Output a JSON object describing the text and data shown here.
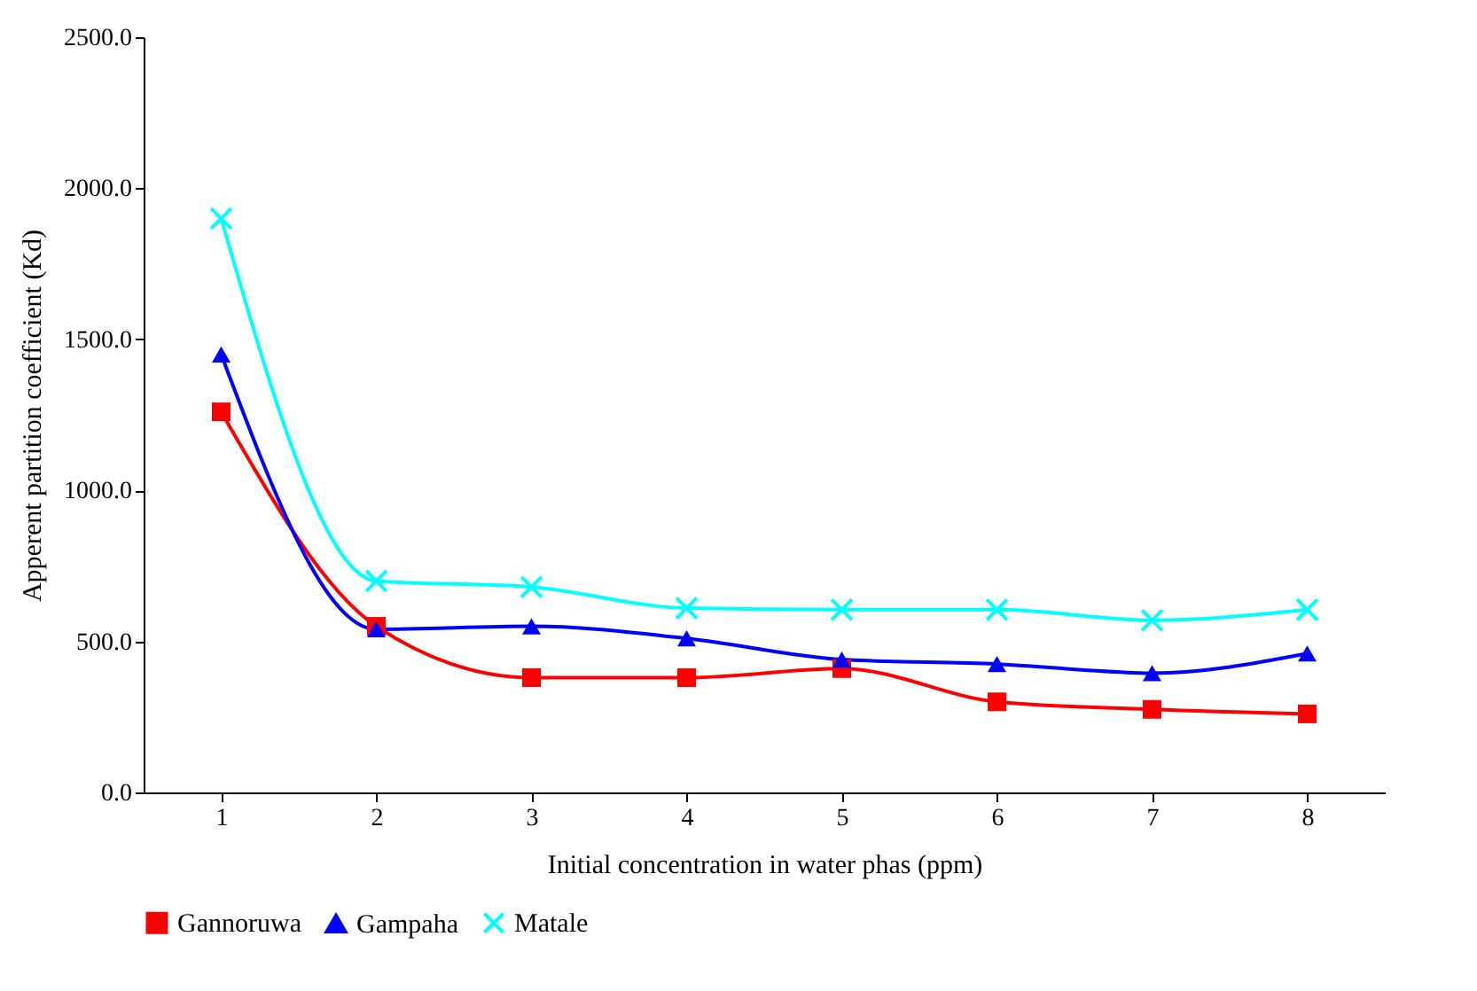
{
  "chart_data": {
    "type": "line",
    "xlabel": "Initial concentration in water phas (ppm)",
    "ylabel": "Apperent partition coefficient (Kd)",
    "categories": [
      "1",
      "2",
      "3",
      "4",
      "5",
      "6",
      "7",
      "8"
    ],
    "series": [
      {
        "name": "Gannoruwa",
        "color": "#ff0000",
        "marker": "square",
        "values": [
          1260,
          550,
          380,
          380,
          410,
          300,
          275,
          260
        ]
      },
      {
        "name": "Gampaha",
        "color": "#0000ff",
        "marker": "triangle",
        "values": [
          1450,
          540,
          550,
          510,
          440,
          425,
          395,
          460
        ]
      },
      {
        "name": "Matale",
        "color": "#00ffff",
        "marker": "cross",
        "values": [
          1900,
          700,
          680,
          610,
          605,
          605,
          570,
          605
        ]
      }
    ],
    "ylim": [
      0,
      2500
    ],
    "yticks": [
      {
        "value": 0,
        "label": "0.0"
      },
      {
        "value": 500,
        "label": "500.0"
      },
      {
        "value": 1000,
        "label": "1000.0"
      },
      {
        "value": 1500,
        "label": "1500.0"
      },
      {
        "value": 2000,
        "label": "2000.0"
      },
      {
        "value": 2500,
        "label": "2500.0"
      }
    ],
    "grid": false,
    "legend": "bottom",
    "line_style": "solid"
  }
}
